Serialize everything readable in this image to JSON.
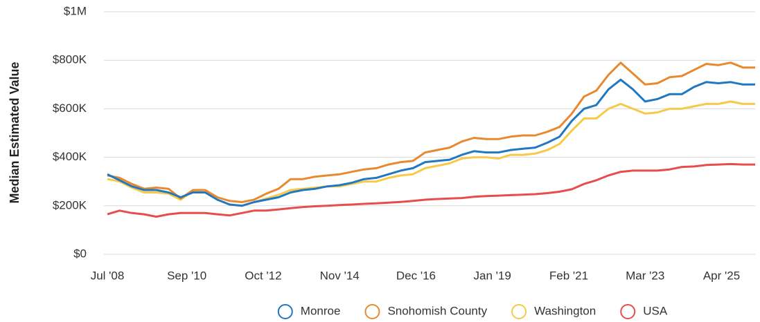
{
  "chart_data": {
    "type": "line",
    "y_label": "Median Estimated Value",
    "x": [
      "2008-07",
      "2008-11",
      "2009-03",
      "2009-07",
      "2009-11",
      "2010-03",
      "2010-07",
      "2010-11",
      "2011-03",
      "2011-07",
      "2011-11",
      "2012-03",
      "2012-07",
      "2012-11",
      "2013-03",
      "2013-07",
      "2013-11",
      "2014-03",
      "2014-07",
      "2014-11",
      "2015-03",
      "2015-07",
      "2015-11",
      "2016-03",
      "2016-07",
      "2016-11",
      "2017-03",
      "2017-07",
      "2017-11",
      "2018-03",
      "2018-07",
      "2018-11",
      "2019-03",
      "2019-07",
      "2019-11",
      "2020-03",
      "2020-07",
      "2020-11",
      "2021-03",
      "2021-07",
      "2021-11",
      "2022-03",
      "2022-07",
      "2022-11",
      "2023-03",
      "2023-07",
      "2023-11",
      "2024-03",
      "2024-07",
      "2024-11",
      "2025-03",
      "2025-07",
      "2025-11",
      "2026-03"
    ],
    "series": [
      {
        "name": "Monroe",
        "color": "#1f78c1",
        "values": [
          330000,
          305000,
          280000,
          265000,
          265000,
          255000,
          235000,
          255000,
          255000,
          225000,
          205000,
          200000,
          215000,
          225000,
          235000,
          255000,
          265000,
          270000,
          280000,
          285000,
          295000,
          310000,
          315000,
          330000,
          345000,
          355000,
          380000,
          385000,
          390000,
          410000,
          425000,
          420000,
          420000,
          430000,
          435000,
          440000,
          460000,
          485000,
          550000,
          600000,
          615000,
          680000,
          720000,
          680000,
          630000,
          640000,
          660000,
          660000,
          690000,
          710000,
          705000,
          710000,
          700000,
          700000
        ]
      },
      {
        "name": "Snohomish County",
        "color": "#e8892f",
        "values": [
          325000,
          315000,
          290000,
          270000,
          275000,
          270000,
          230000,
          265000,
          265000,
          235000,
          220000,
          215000,
          225000,
          250000,
          270000,
          310000,
          310000,
          320000,
          325000,
          330000,
          340000,
          350000,
          355000,
          370000,
          380000,
          385000,
          420000,
          430000,
          440000,
          465000,
          480000,
          475000,
          475000,
          485000,
          490000,
          490000,
          505000,
          525000,
          580000,
          650000,
          675000,
          740000,
          790000,
          745000,
          700000,
          705000,
          730000,
          735000,
          760000,
          785000,
          780000,
          790000,
          770000,
          770000
        ]
      },
      {
        "name": "Washington",
        "color": "#f7c948",
        "values": [
          310000,
          300000,
          275000,
          255000,
          255000,
          250000,
          225000,
          260000,
          255000,
          225000,
          205000,
          200000,
          215000,
          230000,
          245000,
          265000,
          270000,
          275000,
          280000,
          280000,
          290000,
          300000,
          300000,
          315000,
          325000,
          330000,
          355000,
          365000,
          375000,
          395000,
          400000,
          400000,
          395000,
          410000,
          410000,
          415000,
          430000,
          455000,
          510000,
          560000,
          560000,
          600000,
          620000,
          600000,
          580000,
          585000,
          600000,
          600000,
          610000,
          620000,
          620000,
          630000,
          620000,
          620000
        ]
      },
      {
        "name": "USA",
        "color": "#e84c4c",
        "values": [
          165000,
          180000,
          170000,
          165000,
          155000,
          165000,
          170000,
          170000,
          170000,
          165000,
          160000,
          170000,
          180000,
          180000,
          185000,
          190000,
          195000,
          198000,
          200000,
          203000,
          205000,
          208000,
          210000,
          213000,
          216000,
          220000,
          225000,
          228000,
          230000,
          232000,
          237000,
          240000,
          242000,
          244000,
          246000,
          248000,
          252000,
          258000,
          268000,
          290000,
          305000,
          325000,
          340000,
          345000,
          345000,
          345000,
          350000,
          360000,
          362000,
          368000,
          370000,
          372000,
          370000,
          370000
        ]
      }
    ],
    "xlim": [
      "2008-07",
      "2026-03"
    ],
    "xticks": [
      {
        "value": "2008-07",
        "label": "Jul '08"
      },
      {
        "value": "2010-09",
        "label": "Sep '10"
      },
      {
        "value": "2012-10",
        "label": "Oct '12"
      },
      {
        "value": "2014-11",
        "label": "Nov '14"
      },
      {
        "value": "2016-12",
        "label": "Dec '16"
      },
      {
        "value": "2019-01",
        "label": "Jan '19"
      },
      {
        "value": "2021-02",
        "label": "Feb '21"
      },
      {
        "value": "2023-03",
        "label": "Mar '23"
      },
      {
        "value": "2025-04",
        "label": "Apr '25"
      }
    ],
    "ylim": [
      0,
      1000000
    ],
    "yticks": [
      {
        "value": 0,
        "label": "$0"
      },
      {
        "value": 200000,
        "label": "$200K"
      },
      {
        "value": 400000,
        "label": "$400K"
      },
      {
        "value": 600000,
        "label": "$600K"
      },
      {
        "value": 800000,
        "label": "$800K"
      },
      {
        "value": 1000000,
        "label": "$1M"
      }
    ],
    "grid": true,
    "legend": "bottom"
  }
}
